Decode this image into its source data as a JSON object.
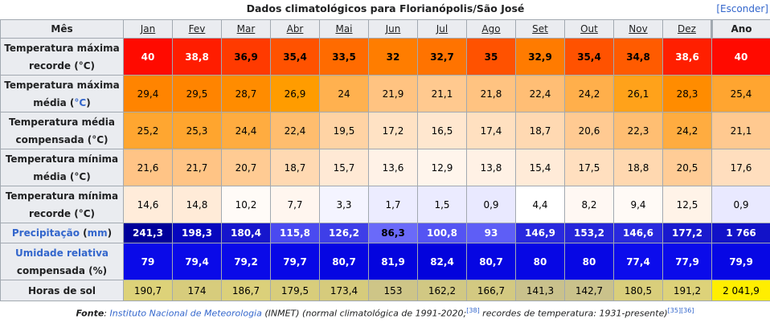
{
  "title": "Dados climatológicos para Florianópolis/São José",
  "hide_label": "[Esconder]",
  "header": {
    "row_label": "Mês",
    "months": [
      "Jan",
      "Fev",
      "Mar",
      "Abr",
      "Mai",
      "Jun",
      "Jul",
      "Ago",
      "Set",
      "Out",
      "Nov",
      "Dez"
    ],
    "year_label": "Ano"
  },
  "rows": [
    {
      "label_parts": [
        {
          "text": "Temperatura máxima recorde (°C)",
          "link": false
        }
      ],
      "values": [
        "40",
        "38,8",
        "36,9",
        "35,4",
        "33,5",
        "32",
        "32,7",
        "35",
        "32,9",
        "35,4",
        "34,8",
        "38,6"
      ],
      "year": "40",
      "bold": true,
      "bg": [
        "#ff0a00",
        "#ff1d00",
        "#ff3a00",
        "#ff5200",
        "#ff6b00",
        "#ff7d00",
        "#ff7300",
        "#ff5200",
        "#ff7b00",
        "#ff5200",
        "#ff5b00",
        "#ff1f00"
      ],
      "fg": [
        "#ffffff",
        "#ffffff",
        "#000000",
        "#000000",
        "#000000",
        "#000000",
        "#000000",
        "#000000",
        "#000000",
        "#000000",
        "#000000",
        "#ffffff"
      ],
      "year_bg": "#ff0a00",
      "year_fg": "#ffffff"
    },
    {
      "label_parts": [
        {
          "text": "Temperatura máxima média (",
          "link": false
        },
        {
          "text": "°C",
          "link": true
        },
        {
          "text": ")",
          "link": false
        }
      ],
      "values": [
        "29,4",
        "29,5",
        "28,7",
        "26,9",
        "24",
        "21,9",
        "21,1",
        "21,8",
        "22,4",
        "24,2",
        "26,1",
        "28,3"
      ],
      "year": "25,4",
      "bold": false,
      "bg": [
        "#ff8400",
        "#ff8400",
        "#ff8c00",
        "#ff9c00",
        "#ffb14f",
        "#ffc381",
        "#ffc98f",
        "#ffc381",
        "#ffbe75",
        "#ffaf4b",
        "#ffa21a",
        "#ff8c00"
      ],
      "fg": [
        "#000000",
        "#000000",
        "#000000",
        "#000000",
        "#000000",
        "#000000",
        "#000000",
        "#000000",
        "#000000",
        "#000000",
        "#000000",
        "#000000"
      ],
      "year_bg": "#ffa530",
      "year_fg": "#000000"
    },
    {
      "label_parts": [
        {
          "text": "Temperatura média compensada (°C)",
          "link": false
        }
      ],
      "values": [
        "25,2",
        "25,3",
        "24,4",
        "22,4",
        "19,5",
        "17,2",
        "16,5",
        "17,4",
        "18,7",
        "20,6",
        "22,3",
        "24,2"
      ],
      "year": "21,1",
      "bold": false,
      "bg": [
        "#ffa630",
        "#ffa52e",
        "#ffac40",
        "#ffbd6e",
        "#ffd3a4",
        "#ffe2c4",
        "#ffe7cf",
        "#ffe0c0",
        "#ffd9b2",
        "#ffca92",
        "#ffbe72",
        "#ffac40"
      ],
      "fg": [
        "#000000",
        "#000000",
        "#000000",
        "#000000",
        "#000000",
        "#000000",
        "#000000",
        "#000000",
        "#000000",
        "#000000",
        "#000000",
        "#000000"
      ],
      "year_bg": "#ffc990",
      "year_fg": "#000000"
    },
    {
      "label_parts": [
        {
          "text": "Temperatura mínima média (°C)",
          "link": false
        }
      ],
      "values": [
        "21,6",
        "21,7",
        "20,7",
        "18,7",
        "15,7",
        "13,6",
        "12,9",
        "13,8",
        "15,4",
        "17,5",
        "18,8",
        "20,5"
      ],
      "year": "17,6",
      "bold": false,
      "bg": [
        "#ffc486",
        "#ffc485",
        "#ffcb93",
        "#ffd9b2",
        "#ffe9d5",
        "#fff2e7",
        "#fff5ec",
        "#fff1e5",
        "#ffebd8",
        "#ffdfbf",
        "#ffd8b0",
        "#ffcc96"
      ],
      "fg": [
        "#000000",
        "#000000",
        "#000000",
        "#000000",
        "#000000",
        "#000000",
        "#000000",
        "#000000",
        "#000000",
        "#000000",
        "#000000",
        "#000000"
      ],
      "year_bg": "#ffdebe",
      "year_fg": "#000000"
    },
    {
      "label_parts": [
        {
          "text": "Temperatura mínima recorde (°C)",
          "link": false
        }
      ],
      "values": [
        "14,6",
        "14,8",
        "10,2",
        "7,7",
        "3,3",
        "1,7",
        "1,5",
        "0,9",
        "4,4",
        "8,2",
        "9,4",
        "12,5"
      ],
      "year": "0,9",
      "bold": false,
      "bg": [
        "#ffecda",
        "#ffebd8",
        "#fffbf7",
        "#fff6ef",
        "#f4f4ff",
        "#ececff",
        "#ebebff",
        "#e9e9ff",
        "#ffffff",
        "#fff8f3",
        "#fffaf6",
        "#fff3e8"
      ],
      "fg": [
        "#000000",
        "#000000",
        "#000000",
        "#000000",
        "#000000",
        "#000000",
        "#000000",
        "#000000",
        "#000000",
        "#000000",
        "#000000",
        "#000000"
      ],
      "year_bg": "#e9e9ff",
      "year_fg": "#000000"
    },
    {
      "label_parts": [
        {
          "text": "Precipitação",
          "link": true
        },
        {
          "text": " (",
          "link": false
        },
        {
          "text": "mm",
          "link": true
        },
        {
          "text": ")",
          "link": false
        }
      ],
      "values": [
        "241,3",
        "198,3",
        "180,4",
        "115,8",
        "126,2",
        "86,3",
        "100,8",
        "93",
        "146,9",
        "153,2",
        "146,6",
        "177,2"
      ],
      "year": "1 766",
      "bold": true,
      "bg": [
        "#00009a",
        "#0707be",
        "#1616cc",
        "#4a4af0",
        "#3e3ee8",
        "#6a6af9",
        "#5454f3",
        "#5e5ef6",
        "#2929de",
        "#2626da",
        "#2929de",
        "#1a1ace"
      ],
      "fg": [
        "#ffffff",
        "#ffffff",
        "#ffffff",
        "#ffffff",
        "#ffffff",
        "#000000",
        "#ffffff",
        "#ffffff",
        "#ffffff",
        "#ffffff",
        "#ffffff",
        "#ffffff"
      ],
      "year_bg": "#1212c8",
      "year_fg": "#ffffff"
    },
    {
      "label_parts": [
        {
          "text": "Umidade relativa",
          "link": true
        },
        {
          "text": " compensada (%)",
          "link": false
        }
      ],
      "values": [
        "79",
        "79,4",
        "79,2",
        "79,7",
        "80,7",
        "81,9",
        "82,4",
        "80,7",
        "80",
        "80",
        "77,4",
        "77,9"
      ],
      "year": "79,9",
      "bold": true,
      "bg": [
        "#0a0ae8",
        "#0a0ae8",
        "#0a0ae8",
        "#0808e6",
        "#0606e2",
        "#0404de",
        "#0303dc",
        "#0606e2",
        "#0707e4",
        "#0707e4",
        "#0c0cec",
        "#0b0bea"
      ],
      "fg": [
        "#ffffff",
        "#ffffff",
        "#ffffff",
        "#ffffff",
        "#ffffff",
        "#ffffff",
        "#ffffff",
        "#ffffff",
        "#ffffff",
        "#ffffff",
        "#ffffff",
        "#ffffff"
      ],
      "year_bg": "#0707e4",
      "year_fg": "#ffffff"
    },
    {
      "label_parts": [
        {
          "text": "Horas de sol",
          "link": false
        }
      ],
      "values": [
        "190,7",
        "174",
        "186,7",
        "179,5",
        "173,4",
        "153",
        "162,2",
        "166,7",
        "141,3",
        "142,7",
        "180,5",
        "191,2"
      ],
      "year": "2 041,9",
      "bold": false,
      "bg": [
        "#ddd279",
        "#d7cc7c",
        "#dbd07a",
        "#d8cd7b",
        "#d6cb7c",
        "#cec587",
        "#d1c883",
        "#d3c981",
        "#c9c18c",
        "#cac28b",
        "#d9ce7b",
        "#ddd279"
      ],
      "fg": [
        "#000000",
        "#000000",
        "#000000",
        "#000000",
        "#000000",
        "#000000",
        "#000000",
        "#000000",
        "#000000",
        "#000000",
        "#000000",
        "#000000"
      ],
      "year_bg": "#ffee00",
      "year_fg": "#000000"
    }
  ],
  "footer": {
    "prefix": "Fonte",
    "sep": ": ",
    "link1": "Instituto Nacional de Meteorologia",
    "text1": " (INMET) (normal climatológica de 1991-2020;",
    "ref1": "[38]",
    "text2": " recordes de temperatura: 1931-presente)",
    "ref2": "[35]",
    "ref3": "[36]"
  }
}
